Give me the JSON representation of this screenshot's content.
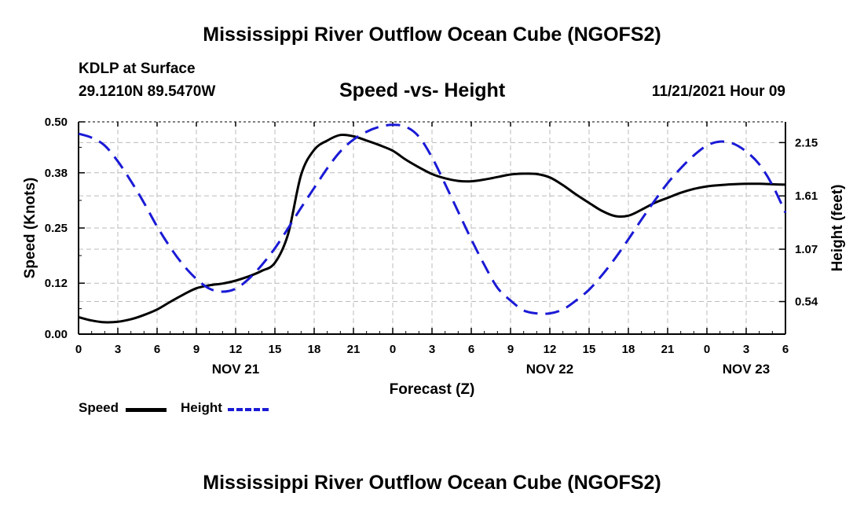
{
  "page": {
    "title": "Mississippi River Outflow Ocean Cube (NGOFS2)",
    "station": "KDLP at Surface",
    "coordinates": "29.1210N  89.5470W",
    "subtitle": "Speed -vs- Height",
    "datetime": "11/21/2021 Hour 09",
    "repeated_title": "Mississippi River Outflow Ocean Cube (NGOFS2)"
  },
  "legend": {
    "speed_label": "Speed",
    "height_label": "Height"
  },
  "colors": {
    "speed": "#000000",
    "height": "#1a1ad6",
    "grid": "#bbbbbb"
  },
  "chart_data": {
    "type": "line",
    "title": "Speed -vs- Height",
    "xlabel": "Forecast (Z)",
    "ylabel_left": "Speed (Knots)",
    "ylabel_right": "Height (feet)",
    "x_units": "hours from 00Z Nov 21",
    "xlim": [
      0,
      54
    ],
    "ylim_left": [
      0.0,
      0.5
    ],
    "ylim_right": [
      0.21,
      2.36
    ],
    "x_ticks": [
      0,
      3,
      6,
      9,
      12,
      15,
      18,
      21,
      24,
      27,
      30,
      33,
      36,
      39,
      42,
      45,
      48,
      51,
      54
    ],
    "x_tick_labels": [
      "0",
      "3",
      "6",
      "9",
      "12",
      "15",
      "18",
      "21",
      "0",
      "3",
      "6",
      "9",
      "12",
      "15",
      "18",
      "21",
      "0",
      "3",
      "6"
    ],
    "date_labels": [
      {
        "x": 12,
        "label": "NOV 21"
      },
      {
        "x": 36,
        "label": "NOV 22"
      },
      {
        "x": 51,
        "label": "NOV 23"
      }
    ],
    "y_left_ticks": [
      0.0,
      0.12,
      0.25,
      0.38,
      0.5
    ],
    "y_left_tick_labels": [
      "0.00",
      "0.12",
      "0.25",
      "0.38",
      "0.50"
    ],
    "y_right_ticks": [
      0.54,
      1.07,
      1.61,
      2.15
    ],
    "y_right_tick_labels": [
      "0.54",
      "1.07",
      "1.61",
      "2.15"
    ],
    "grid": true,
    "legend_position": "bottom-left",
    "series": [
      {
        "name": "Speed",
        "axis": "left",
        "style": "solid",
        "x": [
          0,
          1,
          2,
          3,
          4,
          5,
          6,
          7,
          8,
          9,
          10,
          11,
          12,
          13,
          14,
          15,
          16,
          17,
          18,
          19,
          20,
          21,
          22,
          23,
          24,
          25,
          26,
          27,
          28,
          29,
          30,
          31,
          32,
          33,
          34,
          35,
          36,
          37,
          38,
          39,
          40,
          41,
          42,
          43,
          44,
          45,
          46,
          47,
          48,
          49,
          50,
          51,
          52,
          53,
          54
        ],
        "values": [
          0.04,
          0.032,
          0.028,
          0.029,
          0.035,
          0.045,
          0.058,
          0.076,
          0.093,
          0.108,
          0.115,
          0.119,
          0.126,
          0.136,
          0.149,
          0.168,
          0.235,
          0.375,
          0.434,
          0.456,
          0.469,
          0.466,
          0.456,
          0.445,
          0.432,
          0.411,
          0.393,
          0.377,
          0.367,
          0.361,
          0.36,
          0.364,
          0.37,
          0.376,
          0.378,
          0.377,
          0.369,
          0.351,
          0.329,
          0.309,
          0.29,
          0.278,
          0.279,
          0.293,
          0.309,
          0.321,
          0.333,
          0.342,
          0.348,
          0.351,
          0.353,
          0.354,
          0.354,
          0.353,
          0.352
        ]
      },
      {
        "name": "Height",
        "axis": "right",
        "style": "dashed",
        "x": [
          0,
          1,
          2,
          3,
          4,
          5,
          6,
          7,
          8,
          9,
          10,
          11,
          12,
          13,
          14,
          15,
          16,
          17,
          18,
          19,
          20,
          21,
          22,
          23,
          24,
          25,
          26,
          27,
          28,
          29,
          30,
          31,
          32,
          33,
          34,
          35,
          36,
          37,
          38,
          39,
          40,
          41,
          42,
          43,
          44,
          45,
          46,
          47,
          48,
          49,
          50,
          51,
          52,
          53,
          54
        ],
        "values": [
          2.24,
          2.2,
          2.12,
          1.96,
          1.76,
          1.54,
          1.3,
          1.09,
          0.91,
          0.77,
          0.67,
          0.64,
          0.67,
          0.77,
          0.91,
          1.08,
          1.28,
          1.49,
          1.69,
          1.89,
          2.06,
          2.18,
          2.26,
          2.31,
          2.33,
          2.31,
          2.21,
          2.0,
          1.73,
          1.45,
          1.17,
          0.91,
          0.68,
          0.55,
          0.45,
          0.42,
          0.42,
          0.46,
          0.55,
          0.66,
          0.81,
          0.98,
          1.17,
          1.37,
          1.56,
          1.74,
          1.89,
          2.02,
          2.12,
          2.16,
          2.14,
          2.06,
          1.93,
          1.72,
          1.44
        ]
      }
    ]
  }
}
